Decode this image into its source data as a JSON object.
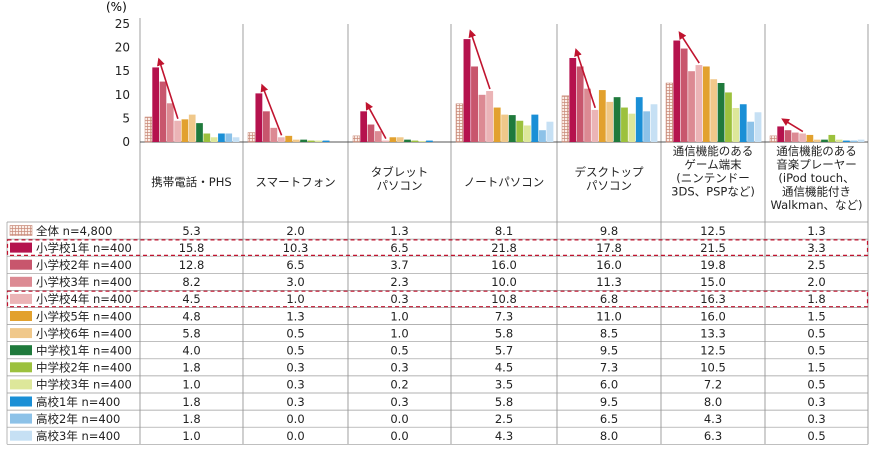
{
  "chart_data": {
    "type": "bar",
    "y_unit": "(%)",
    "ylim": [
      0,
      25
    ],
    "y_ticks": [
      "0",
      "5",
      "10",
      "15",
      "20",
      "25"
    ],
    "categories": [
      [
        "携帯電話・PHS"
      ],
      [
        "スマートフォン"
      ],
      [
        "タブレット",
        "パソコン"
      ],
      [
        "ノートパソコン"
      ],
      [
        "デスクトップ",
        "パソコン"
      ],
      [
        "通信機能のある",
        "ゲーム端末",
        "(ニンテンドー",
        "3DS、PSPなど)"
      ],
      [
        "通信機能のある",
        "音楽プレーヤー",
        "(iPod touch、",
        "通信機能付き",
        "Walkman、など)"
      ]
    ],
    "series": [
      {
        "name": "全体 n=4,800",
        "color": "#f3d7cc",
        "pattern": "grid",
        "values": [
          5.3,
          2.0,
          1.3,
          8.1,
          9.8,
          12.5,
          1.3
        ],
        "labels": [
          "5.3",
          "2.0",
          "1.3",
          "8.1",
          "9.8",
          "12.5",
          "1.3"
        ]
      },
      {
        "name": "小学校1年 n=400",
        "color": "#b5124d",
        "values": [
          15.8,
          10.3,
          6.5,
          21.8,
          17.8,
          21.5,
          3.3
        ],
        "labels": [
          "15.8",
          "10.3",
          "6.5",
          "21.8",
          "17.8",
          "21.5",
          "3.3"
        ],
        "highlight": true
      },
      {
        "name": "小学校2年 n=400",
        "color": "#c8566d",
        "values": [
          12.8,
          6.5,
          3.7,
          16.0,
          16.0,
          19.8,
          2.5
        ],
        "labels": [
          "12.8",
          "6.5",
          "3.7",
          "16.0",
          "16.0",
          "19.8",
          "2.5"
        ]
      },
      {
        "name": "小学校3年 n=400",
        "color": "#dc8a93",
        "values": [
          8.2,
          3.0,
          2.3,
          10.0,
          11.3,
          15.0,
          2.0
        ],
        "labels": [
          "8.2",
          "3.0",
          "2.3",
          "10.0",
          "11.3",
          "15.0",
          "2.0"
        ]
      },
      {
        "name": "小学校4年 n=400",
        "color": "#ebb4b6",
        "values": [
          4.5,
          1.0,
          0.3,
          10.8,
          6.8,
          16.3,
          1.8
        ],
        "labels": [
          "4.5",
          "1.0",
          "0.3",
          "10.8",
          "6.8",
          "16.3",
          "1.8"
        ],
        "highlight": true
      },
      {
        "name": "小学校5年 n=400",
        "color": "#e2a12e",
        "values": [
          4.8,
          1.3,
          1.0,
          7.3,
          11.0,
          16.0,
          1.5
        ],
        "labels": [
          "4.8",
          "1.3",
          "1.0",
          "7.3",
          "11.0",
          "16.0",
          "1.5"
        ]
      },
      {
        "name": "小学校6年 n=400",
        "color": "#f0c88a",
        "values": [
          5.8,
          0.5,
          1.0,
          5.8,
          8.5,
          13.3,
          0.5
        ],
        "labels": [
          "5.8",
          "0.5",
          "1.0",
          "5.8",
          "8.5",
          "13.3",
          "0.5"
        ]
      },
      {
        "name": "中学校1年 n=400",
        "color": "#1f7a3c",
        "values": [
          4.0,
          0.5,
          0.5,
          5.7,
          9.5,
          12.5,
          0.5
        ],
        "labels": [
          "4.0",
          "0.5",
          "0.5",
          "5.7",
          "9.5",
          "12.5",
          "0.5"
        ]
      },
      {
        "name": "中学校2年 n=400",
        "color": "#9cc13d",
        "values": [
          1.8,
          0.3,
          0.3,
          4.5,
          7.3,
          10.5,
          1.5
        ],
        "labels": [
          "1.8",
          "0.3",
          "0.3",
          "4.5",
          "7.3",
          "10.5",
          "1.5"
        ]
      },
      {
        "name": "中学校3年 n=400",
        "color": "#dde79a",
        "values": [
          1.0,
          0.3,
          0.2,
          3.5,
          6.0,
          7.2,
          0.5
        ],
        "labels": [
          "1.0",
          "0.3",
          "0.2",
          "3.5",
          "6.0",
          "7.2",
          "0.5"
        ]
      },
      {
        "name": "高校1年 n=400",
        "color": "#1a8fd6",
        "values": [
          1.8,
          0.3,
          0.3,
          5.8,
          9.5,
          8.0,
          0.3
        ],
        "labels": [
          "1.8",
          "0.3",
          "0.3",
          "5.8",
          "9.5",
          "8.0",
          "0.3"
        ]
      },
      {
        "name": "高校2年 n=400",
        "color": "#8dc2e8",
        "values": [
          1.8,
          0.0,
          0.0,
          2.5,
          6.5,
          4.3,
          0.3
        ],
        "labels": [
          "1.8",
          "0.0",
          "0.0",
          "2.5",
          "6.5",
          "4.3",
          "0.3"
        ]
      },
      {
        "name": "高校3年 n=400",
        "color": "#c6e0f4",
        "values": [
          1.0,
          0.0,
          0.0,
          4.3,
          8.0,
          6.3,
          0.5
        ],
        "labels": [
          "1.0",
          "0.0",
          "0.0",
          "4.3",
          "8.0",
          "6.3",
          "0.5"
        ]
      }
    ],
    "arrow_color": "#c0142f",
    "arrows": [
      {
        "category": 0,
        "from_series": 4,
        "to_series": 1
      },
      {
        "category": 1,
        "from_series": 4,
        "to_series": 1
      },
      {
        "category": 2,
        "from_series": 4,
        "to_series": 1
      },
      {
        "category": 3,
        "from_series": 4,
        "to_series": 1
      },
      {
        "category": 4,
        "from_series": 4,
        "to_series": 1
      },
      {
        "category": 5,
        "from_series": 4,
        "to_series": 1
      },
      {
        "category": 6,
        "from_series": 4,
        "to_series": 1
      }
    ]
  }
}
